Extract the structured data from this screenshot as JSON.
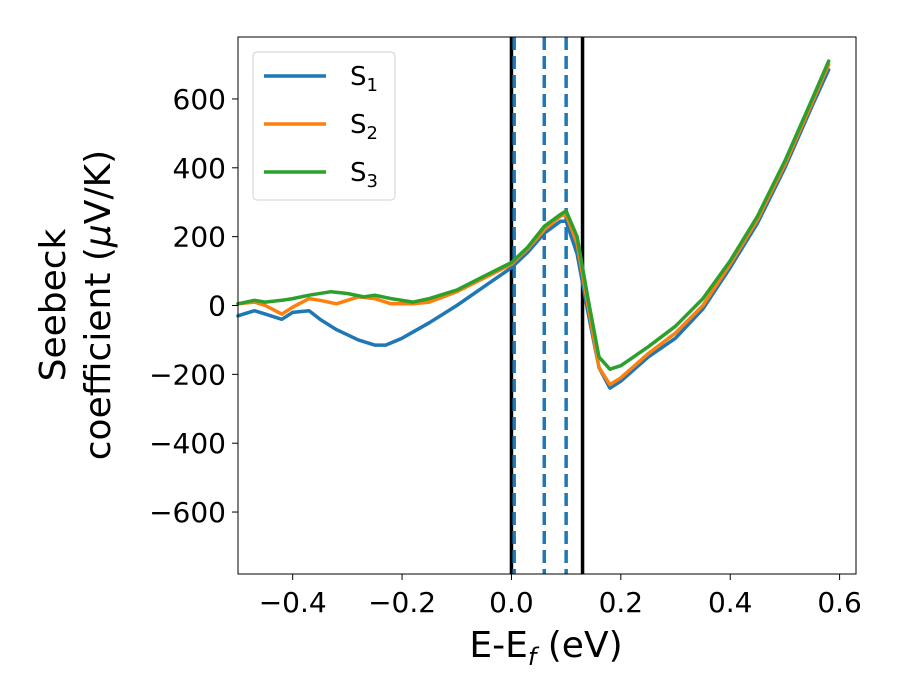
{
  "chart_data": {
    "type": "line",
    "xlabel": "E-E",
    "xlabel_sub": "f",
    "xlabel_unit": " (eV)",
    "ylabel_line1": "Seebeck",
    "ylabel_line2_pre": "coefficient  (",
    "ylabel_line2_mu": "μ",
    "ylabel_line2_post": "V/K)",
    "xlim": [
      -0.5,
      0.63
    ],
    "ylim": [
      -780,
      780
    ],
    "xticks": [
      -0.4,
      -0.2,
      0.0,
      0.2,
      0.4,
      0.6
    ],
    "xtick_labels": [
      "−0.4",
      "−0.2",
      "0.0",
      "0.2",
      "0.4",
      "0.6"
    ],
    "yticks": [
      -600,
      -400,
      -200,
      0,
      200,
      400,
      600
    ],
    "ytick_labels": [
      "−600",
      "−400",
      "−200",
      "0",
      "200",
      "400",
      "600"
    ],
    "grid": false,
    "legend_position": "top-left",
    "vlines": [
      {
        "x": 0.0,
        "style": "solid",
        "color": "#000000"
      },
      {
        "x": 0.005,
        "style": "dashed",
        "color": "#1f77b4"
      },
      {
        "x": 0.06,
        "style": "dashed",
        "color": "#1f77b4"
      },
      {
        "x": 0.1,
        "style": "dashed",
        "color": "#1f77b4"
      },
      {
        "x": 0.13,
        "style": "solid",
        "color": "#000000"
      }
    ],
    "series": [
      {
        "name": "S",
        "subscript": "1",
        "color": "#1f77b4",
        "x": [
          -0.5,
          -0.47,
          -0.45,
          -0.42,
          -0.4,
          -0.37,
          -0.35,
          -0.32,
          -0.28,
          -0.25,
          -0.23,
          -0.2,
          -0.15,
          -0.1,
          -0.05,
          0.0,
          0.03,
          0.06,
          0.09,
          0.1,
          0.12,
          0.14,
          0.16,
          0.18,
          0.2,
          0.25,
          0.3,
          0.35,
          0.4,
          0.45,
          0.5,
          0.55,
          0.58
        ],
        "y": [
          -30,
          -15,
          -25,
          -40,
          -20,
          -15,
          -40,
          -70,
          -100,
          -115,
          -115,
          -95,
          -50,
          0,
          55,
          110,
          155,
          210,
          245,
          245,
          150,
          -20,
          -180,
          -240,
          -220,
          -150,
          -95,
          -10,
          110,
          240,
          400,
          580,
          685
        ]
      },
      {
        "name": "S",
        "subscript": "2",
        "color": "#ff7f0e",
        "x": [
          -0.5,
          -0.47,
          -0.45,
          -0.42,
          -0.4,
          -0.37,
          -0.35,
          -0.32,
          -0.28,
          -0.25,
          -0.22,
          -0.18,
          -0.15,
          -0.1,
          -0.05,
          0.0,
          0.03,
          0.06,
          0.09,
          0.1,
          0.12,
          0.14,
          0.16,
          0.18,
          0.2,
          0.25,
          0.3,
          0.35,
          0.4,
          0.45,
          0.5,
          0.55,
          0.58
        ],
        "y": [
          5,
          10,
          0,
          -25,
          -5,
          20,
          15,
          5,
          25,
          20,
          5,
          5,
          10,
          40,
          80,
          120,
          165,
          220,
          260,
          265,
          180,
          0,
          -180,
          -230,
          -210,
          -140,
          -80,
          0,
          120,
          250,
          410,
          590,
          700
        ]
      },
      {
        "name": "S",
        "subscript": "3",
        "color": "#2ca02c",
        "x": [
          -0.5,
          -0.47,
          -0.45,
          -0.42,
          -0.4,
          -0.37,
          -0.33,
          -0.3,
          -0.27,
          -0.25,
          -0.22,
          -0.18,
          -0.15,
          -0.1,
          -0.05,
          0.0,
          0.03,
          0.06,
          0.09,
          0.1,
          0.12,
          0.14,
          0.16,
          0.18,
          0.2,
          0.25,
          0.3,
          0.35,
          0.4,
          0.45,
          0.5,
          0.55,
          0.58
        ],
        "y": [
          5,
          15,
          10,
          15,
          20,
          30,
          40,
          35,
          25,
          30,
          20,
          10,
          20,
          45,
          85,
          125,
          170,
          230,
          265,
          275,
          200,
          20,
          -150,
          -185,
          -175,
          -120,
          -60,
          20,
          130,
          260,
          420,
          600,
          710
        ]
      }
    ]
  }
}
